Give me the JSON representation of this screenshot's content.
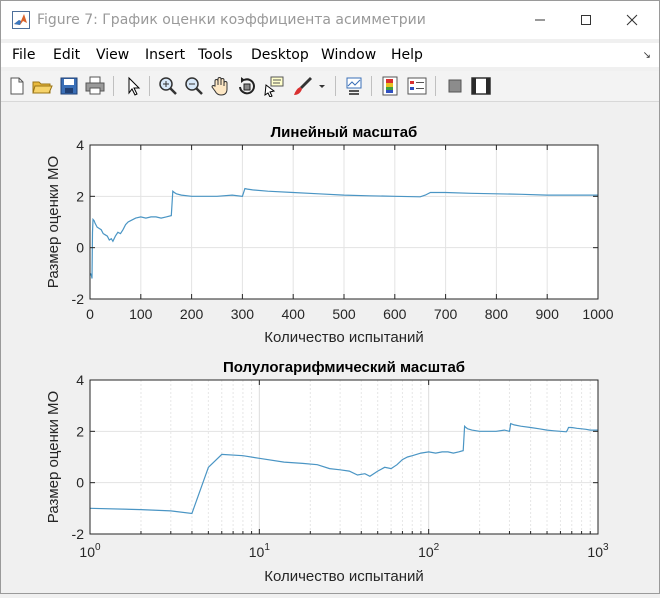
{
  "window": {
    "title": "Figure 7: График оценки коэффициента асимметрии",
    "title_color": "#999999"
  },
  "menu": {
    "items": [
      "File",
      "Edit",
      "View",
      "Insert",
      "Tools",
      "Desktop",
      "Window",
      "Help"
    ]
  },
  "toolbar": {
    "icons": [
      "new-figure-icon",
      "open-file-icon",
      "save-icon",
      "print-icon",
      "edit-plot-arrow-icon",
      "zoom-in-icon",
      "zoom-out-icon",
      "pan-hand-icon",
      "rotate-3d-icon",
      "data-cursor-icon",
      "brush-icon",
      "link-plot-icon",
      "insert-colorbar-icon",
      "insert-legend-icon",
      "hide-plot-tools-icon",
      "show-plot-tools-icon"
    ]
  },
  "chart_data": [
    {
      "type": "line",
      "title": "Линейный масштаб",
      "xlabel": "Количество испытаний",
      "ylabel": "Размер оценки МО",
      "xscale": "linear",
      "xlim": [
        0,
        1000
      ],
      "ylim": [
        -2,
        4
      ],
      "xticks": [
        "0",
        "100",
        "200",
        "300",
        "400",
        "500",
        "600",
        "700",
        "800",
        "900",
        "1000"
      ],
      "yticks": [
        "-2",
        "0",
        "2",
        "4"
      ],
      "grid": true,
      "color": "#4a95c4",
      "series": [
        {
          "x": [
            1,
            2,
            3,
            4,
            5,
            6,
            8,
            10,
            14,
            18,
            22,
            26,
            30,
            34,
            38,
            42,
            45,
            50,
            55,
            60,
            65,
            70,
            75,
            80,
            90,
            100,
            110,
            120,
            130,
            140,
            150,
            160,
            163,
            166,
            170,
            180,
            200,
            230,
            250,
            280,
            300,
            305,
            310,
            320,
            350,
            400,
            450,
            500,
            550,
            600,
            650,
            660,
            670,
            700,
            750,
            800,
            850,
            900,
            950,
            1000
          ],
          "y": [
            -1.0,
            -1.05,
            -1.1,
            -1.2,
            0.6,
            1.1,
            1.05,
            0.95,
            0.8,
            0.75,
            0.7,
            0.55,
            0.5,
            0.45,
            0.3,
            0.35,
            0.25,
            0.45,
            0.6,
            0.55,
            0.7,
            0.9,
            1.0,
            1.05,
            1.15,
            1.2,
            1.15,
            1.2,
            1.2,
            1.15,
            1.2,
            1.25,
            2.2,
            2.15,
            2.1,
            2.05,
            2.0,
            2.0,
            2.0,
            2.05,
            2.0,
            2.3,
            2.28,
            2.25,
            2.2,
            2.15,
            2.1,
            2.05,
            2.02,
            2.0,
            1.98,
            2.05,
            2.15,
            2.15,
            2.12,
            2.1,
            2.08,
            2.05,
            2.05,
            2.05
          ]
        }
      ]
    },
    {
      "type": "line",
      "title": "Полулогарифмический масштаб",
      "xlabel": "Количество испытаний",
      "ylabel": "Размер оценки МО",
      "xscale": "log",
      "xlim": [
        1,
        1000
      ],
      "ylim": [
        -2,
        4
      ],
      "xticks": [
        "10^0",
        "10^1",
        "10^2",
        "10^3"
      ],
      "yticks": [
        "-2",
        "0",
        "2",
        "4"
      ],
      "grid": true,
      "color": "#4a95c4",
      "series": [
        {
          "x": [
            1,
            2,
            3,
            4,
            5,
            6,
            8,
            10,
            14,
            18,
            22,
            26,
            30,
            34,
            38,
            42,
            45,
            50,
            55,
            60,
            65,
            70,
            75,
            80,
            90,
            100,
            110,
            120,
            130,
            140,
            150,
            160,
            163,
            166,
            170,
            180,
            200,
            230,
            250,
            280,
            300,
            305,
            310,
            320,
            350,
            400,
            450,
            500,
            550,
            600,
            650,
            660,
            670,
            700,
            750,
            800,
            850,
            900,
            950,
            1000
          ],
          "y": [
            -1.0,
            -1.05,
            -1.1,
            -1.2,
            0.6,
            1.1,
            1.05,
            0.95,
            0.8,
            0.75,
            0.7,
            0.55,
            0.5,
            0.45,
            0.3,
            0.35,
            0.25,
            0.45,
            0.6,
            0.55,
            0.7,
            0.9,
            1.0,
            1.05,
            1.15,
            1.2,
            1.15,
            1.2,
            1.2,
            1.15,
            1.2,
            1.25,
            2.2,
            2.15,
            2.1,
            2.05,
            2.0,
            2.0,
            2.0,
            2.05,
            2.0,
            2.3,
            2.28,
            2.25,
            2.2,
            2.15,
            2.1,
            2.05,
            2.02,
            2.0,
            1.98,
            2.05,
            2.15,
            2.15,
            2.12,
            2.1,
            2.08,
            2.05,
            2.05,
            2.05
          ]
        }
      ]
    }
  ]
}
